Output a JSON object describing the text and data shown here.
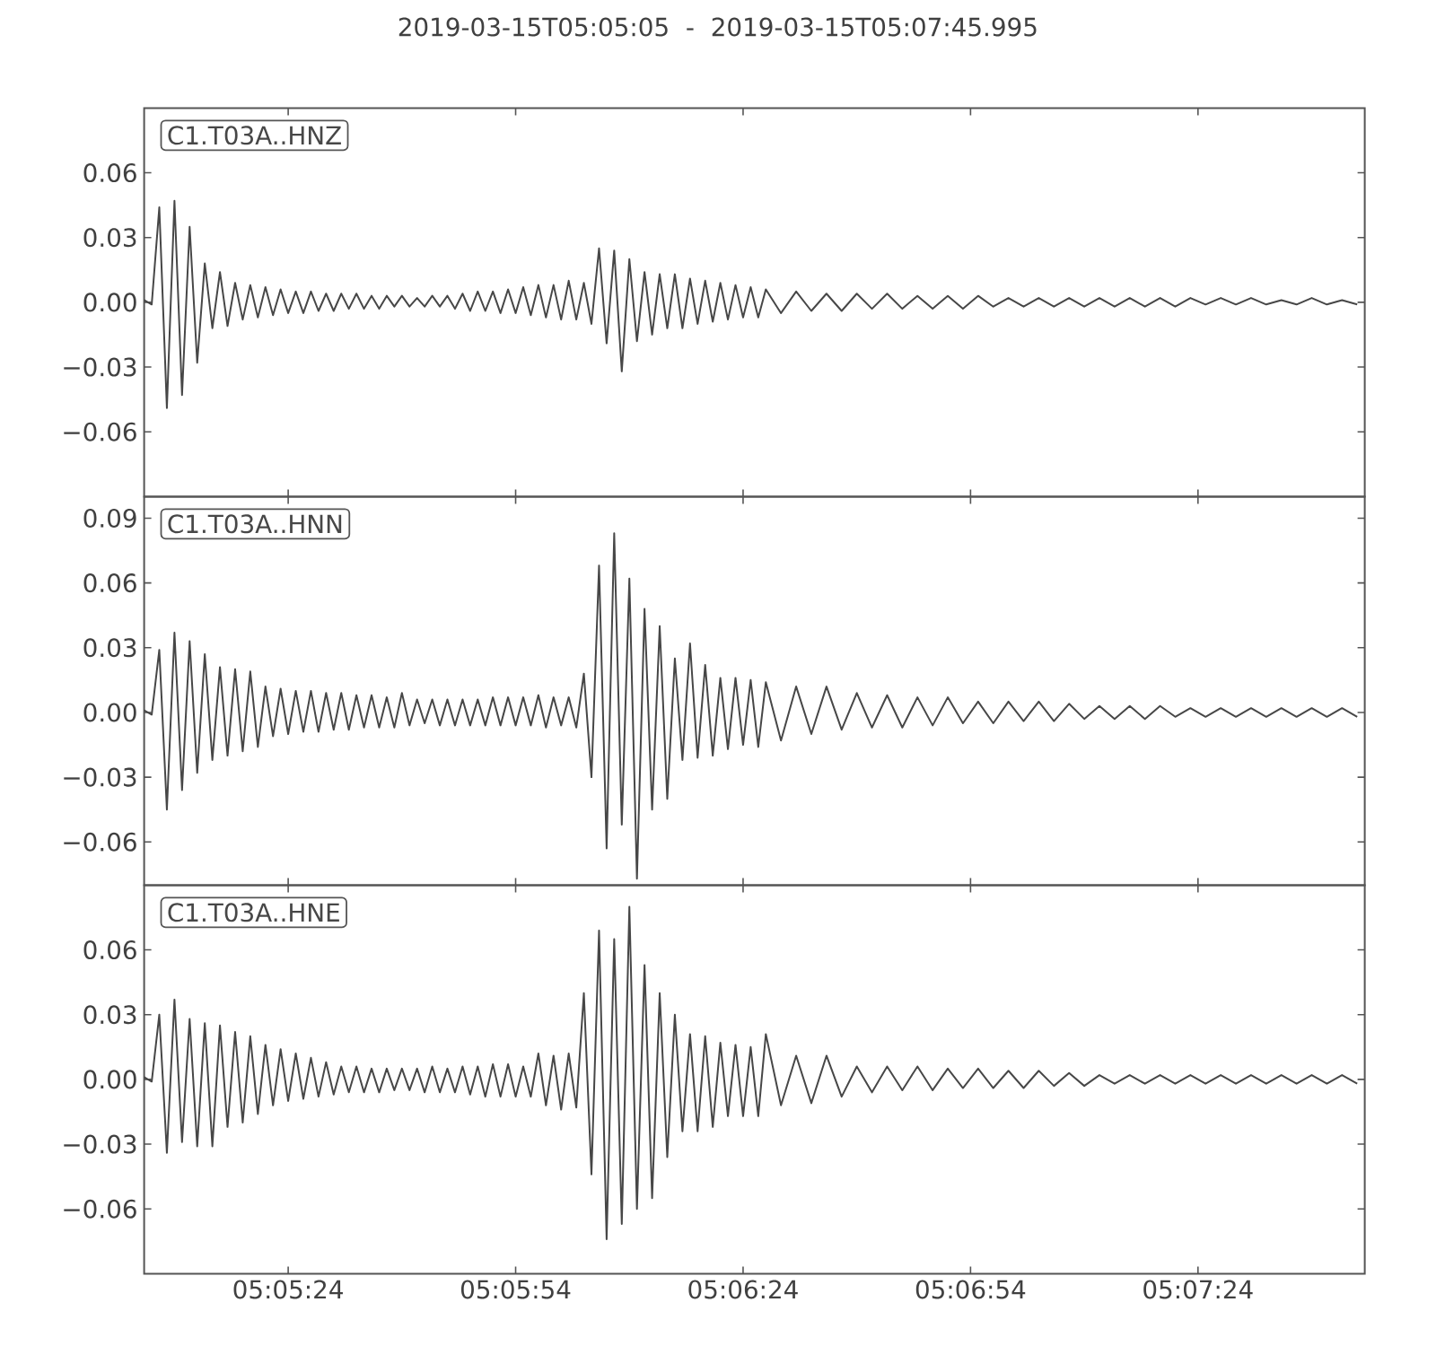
{
  "chart_data": [
    {
      "type": "line",
      "title": "2019-03-15T05:05:05  -  2019-03-15T05:07:45.995",
      "x": [
        "2019-03-15T05:05:05",
        "2019-03-15T05:05:06",
        "2019-03-15T05:05:07",
        "2019-03-15T05:05:08",
        "2019-03-15T05:05:09",
        "2019-03-15T05:05:10",
        "2019-03-15T05:05:11",
        "2019-03-15T05:05:12",
        "2019-03-15T05:05:13",
        "2019-03-15T05:05:14",
        "2019-03-15T05:05:15",
        "2019-03-15T05:05:16",
        "2019-03-15T05:05:17",
        "2019-03-15T05:05:18",
        "2019-03-15T05:05:19",
        "2019-03-15T05:05:20",
        "2019-03-15T05:05:21",
        "2019-03-15T05:05:22",
        "2019-03-15T05:05:23",
        "2019-03-15T05:05:24",
        "2019-03-15T05:05:25",
        "2019-03-15T05:05:26",
        "2019-03-15T05:05:27",
        "2019-03-15T05:05:28",
        "2019-03-15T05:05:29",
        "2019-03-15T05:05:30",
        "2019-03-15T05:05:31",
        "2019-03-15T05:05:32",
        "2019-03-15T05:05:33",
        "2019-03-15T05:05:34",
        "2019-03-15T05:05:35",
        "2019-03-15T05:05:36",
        "2019-03-15T05:05:37",
        "2019-03-15T05:05:38",
        "2019-03-15T05:05:39",
        "2019-03-15T05:05:40",
        "2019-03-15T05:05:41",
        "2019-03-15T05:05:42",
        "2019-03-15T05:05:43",
        "2019-03-15T05:05:44",
        "2019-03-15T05:05:45",
        "2019-03-15T05:05:46",
        "2019-03-15T05:05:47",
        "2019-03-15T05:05:48",
        "2019-03-15T05:05:49",
        "2019-03-15T05:05:50",
        "2019-03-15T05:05:51",
        "2019-03-15T05:05:52",
        "2019-03-15T05:05:53",
        "2019-03-15T05:05:54",
        "2019-03-15T05:05:55",
        "2019-03-15T05:05:56",
        "2019-03-15T05:05:57",
        "2019-03-15T05:05:58",
        "2019-03-15T05:05:59",
        "2019-03-15T05:06:00",
        "2019-03-15T05:06:01",
        "2019-03-15T05:06:02",
        "2019-03-15T05:06:03",
        "2019-03-15T05:06:04",
        "2019-03-15T05:06:05",
        "2019-03-15T05:06:06",
        "2019-03-15T05:06:07",
        "2019-03-15T05:06:08",
        "2019-03-15T05:06:09",
        "2019-03-15T05:06:10",
        "2019-03-15T05:06:11",
        "2019-03-15T05:06:12",
        "2019-03-15T05:06:13",
        "2019-03-15T05:06:14",
        "2019-03-15T05:06:15",
        "2019-03-15T05:06:16",
        "2019-03-15T05:06:17",
        "2019-03-15T05:06:18",
        "2019-03-15T05:06:19",
        "2019-03-15T05:06:20",
        "2019-03-15T05:06:21",
        "2019-03-15T05:06:22",
        "2019-03-15T05:06:23",
        "2019-03-15T05:06:24",
        "2019-03-15T05:06:25",
        "2019-03-15T05:06:26",
        "2019-03-15T05:06:27",
        "2019-03-15T05:06:29",
        "2019-03-15T05:06:31",
        "2019-03-15T05:06:33",
        "2019-03-15T05:06:35",
        "2019-03-15T05:06:37",
        "2019-03-15T05:06:39",
        "2019-03-15T05:06:41",
        "2019-03-15T05:06:43",
        "2019-03-15T05:06:45",
        "2019-03-15T05:06:47",
        "2019-03-15T05:06:49",
        "2019-03-15T05:06:51",
        "2019-03-15T05:06:53",
        "2019-03-15T05:06:55",
        "2019-03-15T05:06:57",
        "2019-03-15T05:06:59",
        "2019-03-15T05:07:01",
        "2019-03-15T05:07:03",
        "2019-03-15T05:07:05",
        "2019-03-15T05:07:07",
        "2019-03-15T05:07:09",
        "2019-03-15T05:07:11",
        "2019-03-15T05:07:13",
        "2019-03-15T05:07:15",
        "2019-03-15T05:07:17",
        "2019-03-15T05:07:19",
        "2019-03-15T05:07:21",
        "2019-03-15T05:07:23",
        "2019-03-15T05:07:25",
        "2019-03-15T05:07:27",
        "2019-03-15T05:07:29",
        "2019-03-15T05:07:31",
        "2019-03-15T05:07:33",
        "2019-03-15T05:07:35",
        "2019-03-15T05:07:37",
        "2019-03-15T05:07:39",
        "2019-03-15T05:07:41",
        "2019-03-15T05:07:43",
        "2019-03-15T05:07:45"
      ],
      "series": [
        {
          "name": "C1.T03A..HNZ",
          "color": "#474747",
          "values": [
            0.001,
            -0.001,
            0.044,
            -0.049,
            0.047,
            -0.043,
            0.035,
            -0.028,
            0.018,
            -0.012,
            0.014,
            -0.011,
            0.009,
            -0.008,
            0.008,
            -0.007,
            0.007,
            -0.006,
            0.006,
            -0.005,
            0.005,
            -0.005,
            0.005,
            -0.004,
            0.004,
            -0.004,
            0.004,
            -0.003,
            0.004,
            -0.003,
            0.003,
            -0.003,
            0.003,
            -0.002,
            0.003,
            -0.002,
            0.002,
            -0.002,
            0.003,
            -0.002,
            0.003,
            -0.003,
            0.004,
            -0.004,
            0.005,
            -0.004,
            0.005,
            -0.005,
            0.006,
            -0.005,
            0.007,
            -0.006,
            0.008,
            -0.007,
            0.008,
            -0.008,
            0.01,
            -0.008,
            0.009,
            -0.01,
            0.025,
            -0.019,
            0.024,
            -0.032,
            0.02,
            -0.018,
            0.014,
            -0.015,
            0.013,
            -0.012,
            0.013,
            -0.012,
            0.011,
            -0.01,
            0.01,
            -0.009,
            0.009,
            -0.008,
            0.008,
            -0.007,
            0.007,
            -0.007,
            0.006,
            -0.005,
            0.005,
            -0.004,
            0.004,
            -0.004,
            0.004,
            -0.003,
            0.004,
            -0.003,
            0.003,
            -0.003,
            0.003,
            -0.003,
            0.003,
            -0.002,
            0.002,
            -0.002,
            0.002,
            -0.002,
            0.002,
            -0.002,
            0.002,
            -0.002,
            0.002,
            -0.002,
            0.002,
            -0.002,
            0.002,
            -0.001,
            0.002,
            -0.001,
            0.002,
            -0.001,
            0.001,
            -0.001,
            0.002,
            -0.001,
            0.001,
            -0.001
          ]
        }
      ],
      "xlim": [
        "2019-03-15T05:05:05",
        "2019-03-15T05:07:45.995"
      ],
      "xticks": [
        {
          "value": "2019-03-15T05:05:24",
          "label": null
        },
        {
          "value": "2019-03-15T05:05:54",
          "label": null
        },
        {
          "value": "2019-03-15T05:06:24",
          "label": null
        },
        {
          "value": "2019-03-15T05:06:54",
          "label": null
        },
        {
          "value": "2019-03-15T05:07:24",
          "label": null
        }
      ],
      "ylim": [
        -0.09,
        0.09
      ],
      "yticks": [
        {
          "value": -0.06,
          "label": "−0.06"
        },
        {
          "value": -0.03,
          "label": "−0.03"
        },
        {
          "value": 0,
          "label": "0.00"
        },
        0.03,
        0.06
      ],
      "tick_labels": "y"
    },
    {
      "type": "line",
      "x": [
        "2019-03-15T05:05:05",
        "2019-03-15T05:05:06",
        "2019-03-15T05:05:07",
        "2019-03-15T05:05:08",
        "2019-03-15T05:05:09",
        "2019-03-15T05:05:10",
        "2019-03-15T05:05:11",
        "2019-03-15T05:05:12",
        "2019-03-15T05:05:13",
        "2019-03-15T05:05:14",
        "2019-03-15T05:05:15",
        "2019-03-15T05:05:16",
        "2019-03-15T05:05:17",
        "2019-03-15T05:05:18",
        "2019-03-15T05:05:19",
        "2019-03-15T05:05:20",
        "2019-03-15T05:05:21",
        "2019-03-15T05:05:22",
        "2019-03-15T05:05:23",
        "2019-03-15T05:05:24",
        "2019-03-15T05:05:25",
        "2019-03-15T05:05:26",
        "2019-03-15T05:05:27",
        "2019-03-15T05:05:28",
        "2019-03-15T05:05:29",
        "2019-03-15T05:05:30",
        "2019-03-15T05:05:31",
        "2019-03-15T05:05:32",
        "2019-03-15T05:05:33",
        "2019-03-15T05:05:34",
        "2019-03-15T05:05:35",
        "2019-03-15T05:05:36",
        "2019-03-15T05:05:37",
        "2019-03-15T05:05:38",
        "2019-03-15T05:05:39",
        "2019-03-15T05:05:40",
        "2019-03-15T05:05:41",
        "2019-03-15T05:05:42",
        "2019-03-15T05:05:43",
        "2019-03-15T05:05:44",
        "2019-03-15T05:05:45",
        "2019-03-15T05:05:46",
        "2019-03-15T05:05:47",
        "2019-03-15T05:05:48",
        "2019-03-15T05:05:49",
        "2019-03-15T05:05:50",
        "2019-03-15T05:05:51",
        "2019-03-15T05:05:52",
        "2019-03-15T05:05:53",
        "2019-03-15T05:05:54",
        "2019-03-15T05:05:55",
        "2019-03-15T05:05:56",
        "2019-03-15T05:05:57",
        "2019-03-15T05:05:58",
        "2019-03-15T05:05:59",
        "2019-03-15T05:06:00",
        "2019-03-15T05:06:01",
        "2019-03-15T05:06:02",
        "2019-03-15T05:06:03",
        "2019-03-15T05:06:04",
        "2019-03-15T05:06:05",
        "2019-03-15T05:06:06",
        "2019-03-15T05:06:07",
        "2019-03-15T05:06:08",
        "2019-03-15T05:06:09",
        "2019-03-15T05:06:10",
        "2019-03-15T05:06:11",
        "2019-03-15T05:06:12",
        "2019-03-15T05:06:13",
        "2019-03-15T05:06:14",
        "2019-03-15T05:06:15",
        "2019-03-15T05:06:16",
        "2019-03-15T05:06:17",
        "2019-03-15T05:06:18",
        "2019-03-15T05:06:19",
        "2019-03-15T05:06:20",
        "2019-03-15T05:06:21",
        "2019-03-15T05:06:22",
        "2019-03-15T05:06:23",
        "2019-03-15T05:06:24",
        "2019-03-15T05:06:25",
        "2019-03-15T05:06:26",
        "2019-03-15T05:06:27",
        "2019-03-15T05:06:29",
        "2019-03-15T05:06:31",
        "2019-03-15T05:06:33",
        "2019-03-15T05:06:35",
        "2019-03-15T05:06:37",
        "2019-03-15T05:06:39",
        "2019-03-15T05:06:41",
        "2019-03-15T05:06:43",
        "2019-03-15T05:06:45",
        "2019-03-15T05:06:47",
        "2019-03-15T05:06:49",
        "2019-03-15T05:06:51",
        "2019-03-15T05:06:53",
        "2019-03-15T05:06:55",
        "2019-03-15T05:06:57",
        "2019-03-15T05:06:59",
        "2019-03-15T05:07:01",
        "2019-03-15T05:07:03",
        "2019-03-15T05:07:05",
        "2019-03-15T05:07:07",
        "2019-03-15T05:07:09",
        "2019-03-15T05:07:11",
        "2019-03-15T05:07:13",
        "2019-03-15T05:07:15",
        "2019-03-15T05:07:17",
        "2019-03-15T05:07:19",
        "2019-03-15T05:07:21",
        "2019-03-15T05:07:23",
        "2019-03-15T05:07:25",
        "2019-03-15T05:07:27",
        "2019-03-15T05:07:29",
        "2019-03-15T05:07:31",
        "2019-03-15T05:07:33",
        "2019-03-15T05:07:35",
        "2019-03-15T05:07:37",
        "2019-03-15T05:07:39",
        "2019-03-15T05:07:41",
        "2019-03-15T05:07:43",
        "2019-03-15T05:07:45"
      ],
      "series": [
        {
          "name": "C1.T03A..HNN",
          "color": "#474747",
          "values": [
            0.001,
            -0.001,
            0.029,
            -0.045,
            0.037,
            -0.036,
            0.033,
            -0.028,
            0.027,
            -0.022,
            0.021,
            -0.02,
            0.02,
            -0.018,
            0.019,
            -0.016,
            0.012,
            -0.011,
            0.011,
            -0.01,
            0.01,
            -0.009,
            0.01,
            -0.009,
            0.009,
            -0.008,
            0.009,
            -0.008,
            0.008,
            -0.007,
            0.008,
            -0.007,
            0.007,
            -0.007,
            0.009,
            -0.006,
            0.006,
            -0.005,
            0.006,
            -0.006,
            0.006,
            -0.006,
            0.006,
            -0.006,
            0.006,
            -0.006,
            0.007,
            -0.006,
            0.007,
            -0.006,
            0.007,
            -0.006,
            0.008,
            -0.007,
            0.007,
            -0.006,
            0.007,
            -0.007,
            0.018,
            -0.03,
            0.068,
            -0.063,
            0.083,
            -0.052,
            0.062,
            -0.077,
            0.048,
            -0.045,
            0.04,
            -0.04,
            0.025,
            -0.022,
            0.032,
            -0.021,
            0.022,
            -0.02,
            0.016,
            -0.017,
            0.016,
            -0.015,
            0.015,
            -0.016,
            0.014,
            -0.013,
            0.012,
            -0.01,
            0.012,
            -0.008,
            0.009,
            -0.007,
            0.008,
            -0.007,
            0.007,
            -0.006,
            0.007,
            -0.005,
            0.005,
            -0.005,
            0.005,
            -0.004,
            0.005,
            -0.004,
            0.004,
            -0.003,
            0.003,
            -0.003,
            0.003,
            -0.003,
            0.003,
            -0.002,
            0.002,
            -0.002,
            0.002,
            -0.002,
            0.002,
            -0.002,
            0.002,
            -0.002,
            0.002,
            -0.002,
            0.002,
            -0.002
          ]
        }
      ],
      "xlim": [
        "2019-03-15T05:05:05",
        "2019-03-15T05:07:45.995"
      ],
      "xticks": [
        {
          "value": "2019-03-15T05:05:24",
          "label": null
        },
        {
          "value": "2019-03-15T05:05:54",
          "label": null
        },
        {
          "value": "2019-03-15T05:06:24",
          "label": null
        },
        {
          "value": "2019-03-15T05:06:54",
          "label": null
        },
        {
          "value": "2019-03-15T05:07:24",
          "label": null
        }
      ],
      "ylim": [
        -0.08,
        0.1
      ],
      "yticks": [
        {
          "value": -0.06,
          "label": "−0.06"
        },
        {
          "value": -0.03,
          "label": "−0.03"
        },
        {
          "value": 0,
          "label": "0.00"
        },
        0.03,
        0.06,
        0.09
      ],
      "tick_labels": "y"
    },
    {
      "type": "line",
      "x": [
        "2019-03-15T05:05:05",
        "2019-03-15T05:05:06",
        "2019-03-15T05:05:07",
        "2019-03-15T05:05:08",
        "2019-03-15T05:05:09",
        "2019-03-15T05:05:10",
        "2019-03-15T05:05:11",
        "2019-03-15T05:05:12",
        "2019-03-15T05:05:13",
        "2019-03-15T05:05:14",
        "2019-03-15T05:05:15",
        "2019-03-15T05:05:16",
        "2019-03-15T05:05:17",
        "2019-03-15T05:05:18",
        "2019-03-15T05:05:19",
        "2019-03-15T05:05:20",
        "2019-03-15T05:05:21",
        "2019-03-15T05:05:22",
        "2019-03-15T05:05:23",
        "2019-03-15T05:05:24",
        "2019-03-15T05:05:25",
        "2019-03-15T05:05:26",
        "2019-03-15T05:05:27",
        "2019-03-15T05:05:28",
        "2019-03-15T05:05:29",
        "2019-03-15T05:05:30",
        "2019-03-15T05:05:31",
        "2019-03-15T05:05:32",
        "2019-03-15T05:05:33",
        "2019-03-15T05:05:34",
        "2019-03-15T05:05:35",
        "2019-03-15T05:05:36",
        "2019-03-15T05:05:37",
        "2019-03-15T05:05:38",
        "2019-03-15T05:05:39",
        "2019-03-15T05:05:40",
        "2019-03-15T05:05:41",
        "2019-03-15T05:05:42",
        "2019-03-15T05:05:43",
        "2019-03-15T05:05:44",
        "2019-03-15T05:05:45",
        "2019-03-15T05:05:46",
        "2019-03-15T05:05:47",
        "2019-03-15T05:05:48",
        "2019-03-15T05:05:49",
        "2019-03-15T05:05:50",
        "2019-03-15T05:05:51",
        "2019-03-15T05:05:52",
        "2019-03-15T05:05:53",
        "2019-03-15T05:05:54",
        "2019-03-15T05:05:55",
        "2019-03-15T05:05:56",
        "2019-03-15T05:05:57",
        "2019-03-15T05:05:58",
        "2019-03-15T05:05:59",
        "2019-03-15T05:06:00",
        "2019-03-15T05:06:01",
        "2019-03-15T05:06:02",
        "2019-03-15T05:06:03",
        "2019-03-15T05:06:04",
        "2019-03-15T05:06:05",
        "2019-03-15T05:06:06",
        "2019-03-15T05:06:07",
        "2019-03-15T05:06:08",
        "2019-03-15T05:06:09",
        "2019-03-15T05:06:10",
        "2019-03-15T05:06:11",
        "2019-03-15T05:06:12",
        "2019-03-15T05:06:13",
        "2019-03-15T05:06:14",
        "2019-03-15T05:06:15",
        "2019-03-15T05:06:16",
        "2019-03-15T05:06:17",
        "2019-03-15T05:06:18",
        "2019-03-15T05:06:19",
        "2019-03-15T05:06:20",
        "2019-03-15T05:06:21",
        "2019-03-15T05:06:22",
        "2019-03-15T05:06:23",
        "2019-03-15T05:06:24",
        "2019-03-15T05:06:25",
        "2019-03-15T05:06:26",
        "2019-03-15T05:06:27",
        "2019-03-15T05:06:29",
        "2019-03-15T05:06:31",
        "2019-03-15T05:06:33",
        "2019-03-15T05:06:35",
        "2019-03-15T05:06:37",
        "2019-03-15T05:06:39",
        "2019-03-15T05:06:41",
        "2019-03-15T05:06:43",
        "2019-03-15T05:06:45",
        "2019-03-15T05:06:47",
        "2019-03-15T05:06:49",
        "2019-03-15T05:06:51",
        "2019-03-15T05:06:53",
        "2019-03-15T05:06:55",
        "2019-03-15T05:06:57",
        "2019-03-15T05:06:59",
        "2019-03-15T05:07:01",
        "2019-03-15T05:07:03",
        "2019-03-15T05:07:05",
        "2019-03-15T05:07:07",
        "2019-03-15T05:07:09",
        "2019-03-15T05:07:11",
        "2019-03-15T05:07:13",
        "2019-03-15T05:07:15",
        "2019-03-15T05:07:17",
        "2019-03-15T05:07:19",
        "2019-03-15T05:07:21",
        "2019-03-15T05:07:23",
        "2019-03-15T05:07:25",
        "2019-03-15T05:07:27",
        "2019-03-15T05:07:29",
        "2019-03-15T05:07:31",
        "2019-03-15T05:07:33",
        "2019-03-15T05:07:35",
        "2019-03-15T05:07:37",
        "2019-03-15T05:07:39",
        "2019-03-15T05:07:41",
        "2019-03-15T05:07:43",
        "2019-03-15T05:07:45"
      ],
      "series": [
        {
          "name": "C1.T03A..HNE",
          "color": "#474747",
          "values": [
            0.001,
            -0.001,
            0.03,
            -0.034,
            0.037,
            -0.029,
            0.028,
            -0.031,
            0.026,
            -0.031,
            0.025,
            -0.022,
            0.022,
            -0.02,
            0.02,
            -0.016,
            0.016,
            -0.012,
            0.014,
            -0.01,
            0.012,
            -0.009,
            0.01,
            -0.008,
            0.008,
            -0.007,
            0.006,
            -0.006,
            0.006,
            -0.006,
            0.005,
            -0.006,
            0.005,
            -0.005,
            0.005,
            -0.005,
            0.005,
            -0.006,
            0.006,
            -0.006,
            0.005,
            -0.006,
            0.006,
            -0.007,
            0.006,
            -0.008,
            0.007,
            -0.008,
            0.007,
            -0.008,
            0.006,
            -0.008,
            0.012,
            -0.012,
            0.011,
            -0.014,
            0.012,
            -0.013,
            0.04,
            -0.044,
            0.069,
            -0.074,
            0.065,
            -0.067,
            0.08,
            -0.06,
            0.053,
            -0.055,
            0.04,
            -0.036,
            0.03,
            -0.024,
            0.021,
            -0.024,
            0.02,
            -0.022,
            0.017,
            -0.017,
            0.016,
            -0.017,
            0.015,
            -0.017,
            0.021,
            -0.012,
            0.011,
            -0.011,
            0.011,
            -0.008,
            0.006,
            -0.006,
            0.006,
            -0.005,
            0.006,
            -0.005,
            0.005,
            -0.004,
            0.005,
            -0.004,
            0.004,
            -0.004,
            0.004,
            -0.003,
            0.003,
            -0.003,
            0.002,
            -0.002,
            0.002,
            -0.002,
            0.002,
            -0.002,
            0.002,
            -0.002,
            0.002,
            -0.002,
            0.002,
            -0.002,
            0.002,
            -0.002,
            0.002,
            -0.002,
            0.002,
            -0.002
          ]
        }
      ],
      "xlim": [
        "2019-03-15T05:05:05",
        "2019-03-15T05:07:45.995"
      ],
      "xticks": [
        {
          "value": "2019-03-15T05:05:24",
          "label": "05:05:24"
        },
        {
          "value": "2019-03-15T05:05:54",
          "label": "05:05:54"
        },
        {
          "value": "2019-03-15T05:06:24",
          "label": "05:06:24"
        },
        {
          "value": "2019-03-15T05:06:54",
          "label": "05:06:54"
        },
        {
          "value": "2019-03-15T05:07:24",
          "label": "05:07:24"
        }
      ],
      "ylim": [
        -0.09,
        0.09
      ],
      "yticks": [
        {
          "value": -0.06,
          "label": "−0.06"
        },
        {
          "value": -0.03,
          "label": "−0.03"
        },
        {
          "value": 0,
          "label": "0.00"
        },
        0.03,
        0.06
      ]
    }
  ]
}
